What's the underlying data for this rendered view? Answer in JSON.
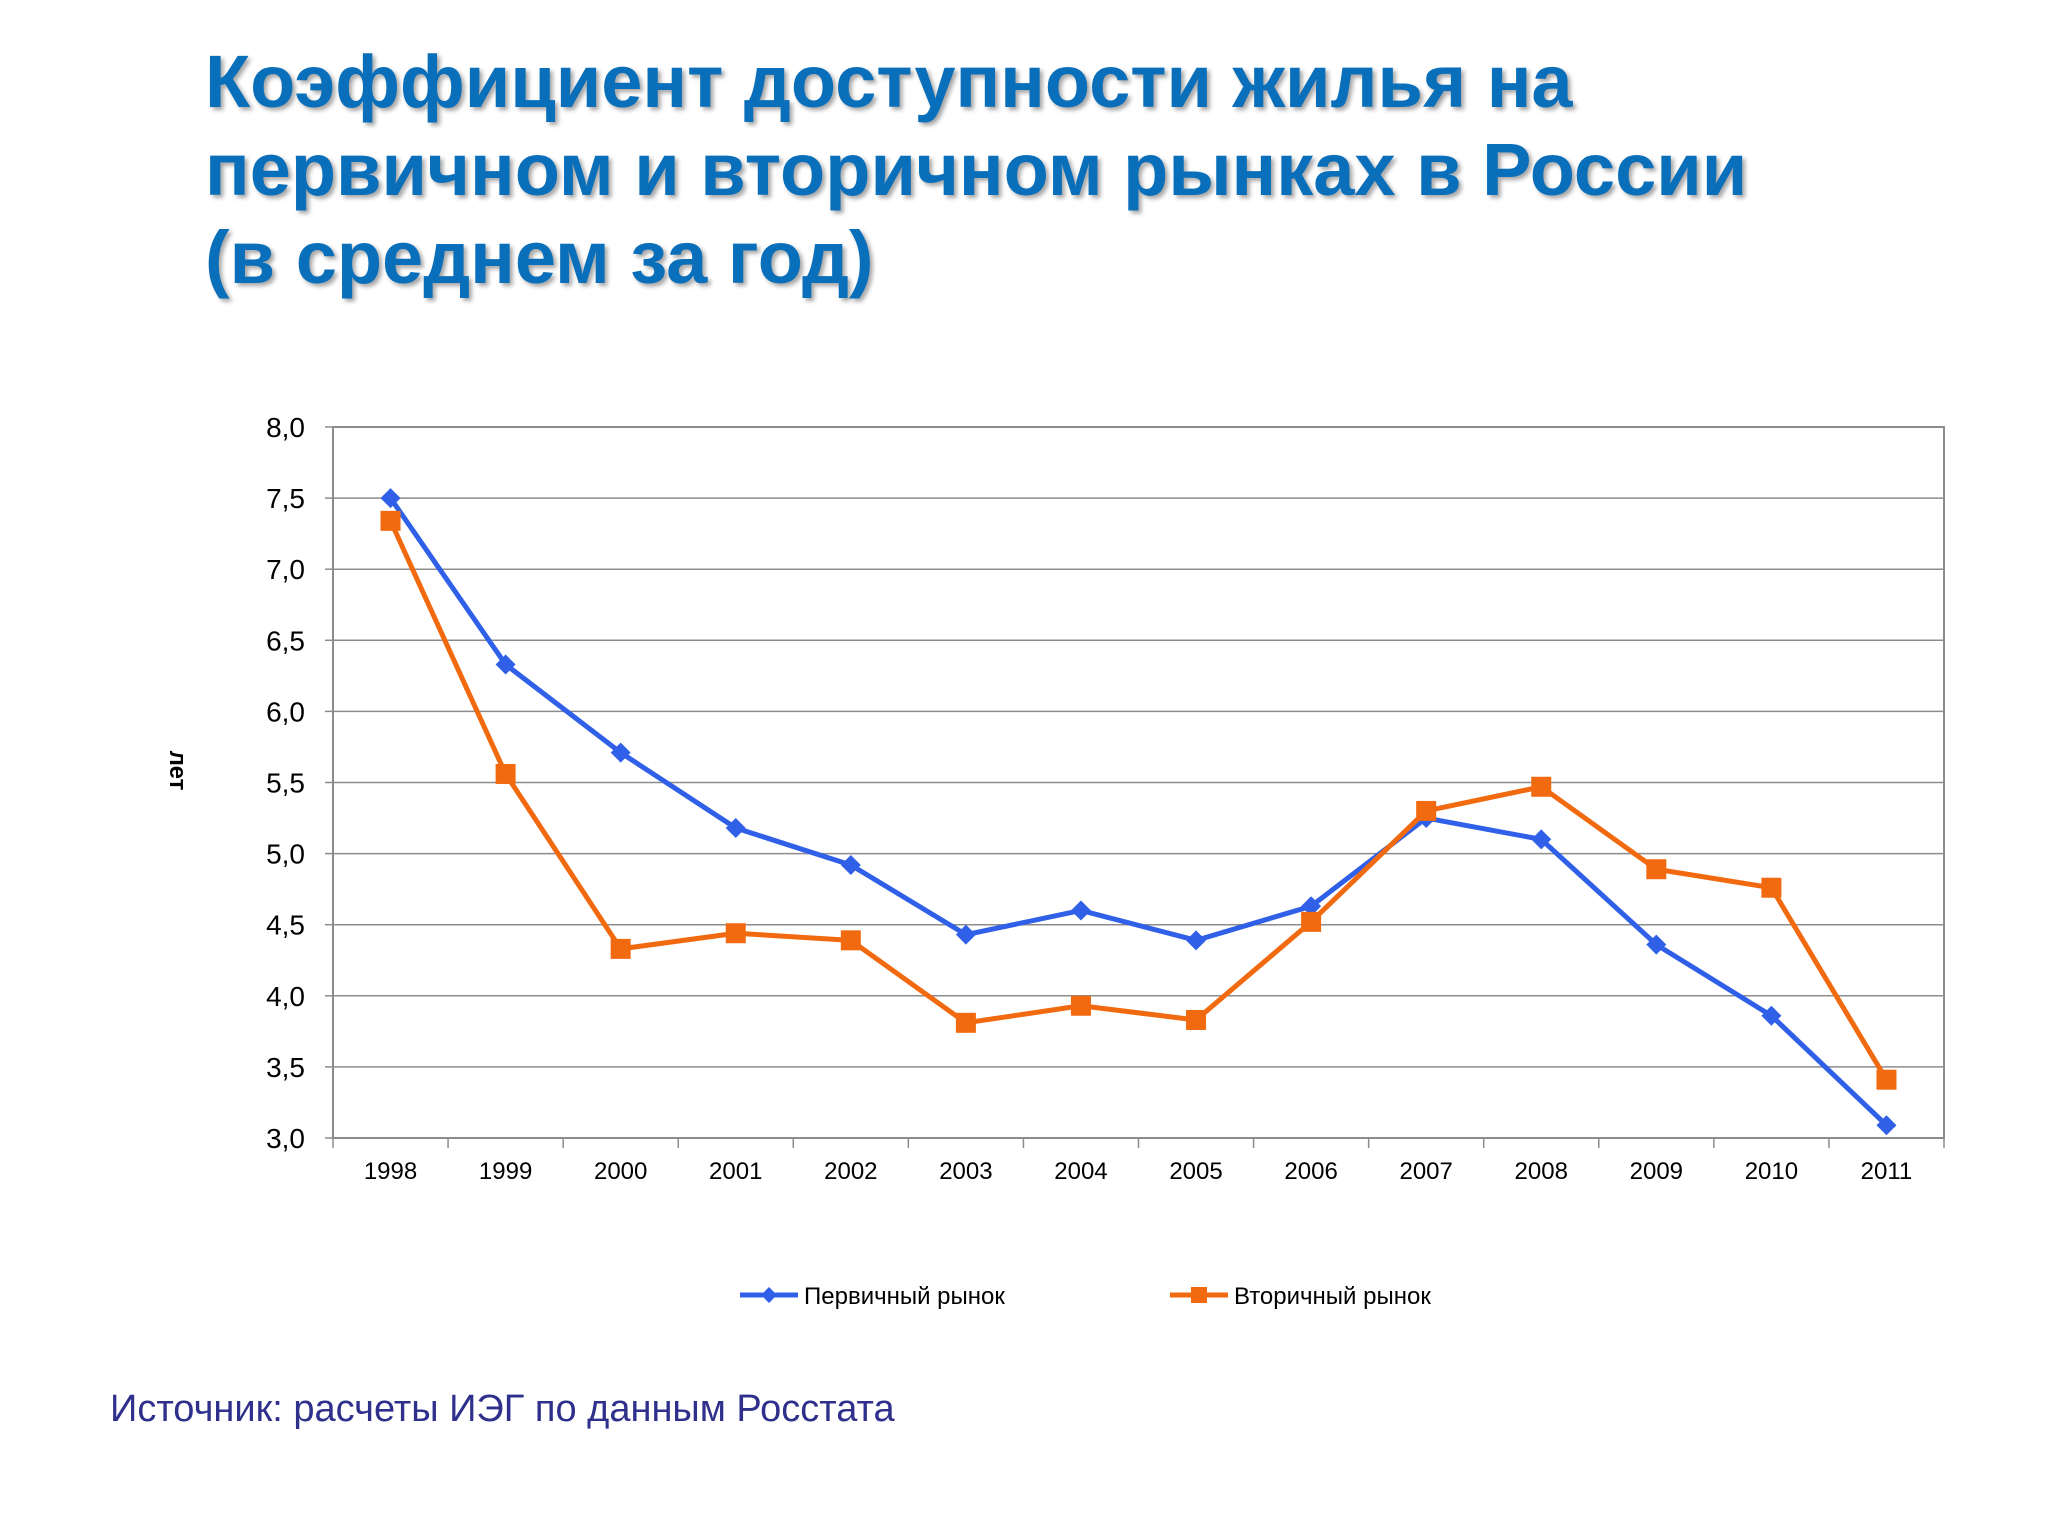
{
  "title_lines": [
    "Коэффициент доступности жилья на",
    "первичном и вторичном рынках в России",
    "(в среднем за год)"
  ],
  "source": "Источник: расчеты ИЭГ по данным Росстата",
  "colors": {
    "primary": "#3060e8",
    "secondary": "#f26a10",
    "title": "#0a6fba",
    "source": "#2f2f8c"
  },
  "chart_data": {
    "type": "line",
    "title": "Коэффициент доступности жилья на первичном и вторичном рынках в России (в среднем за год)",
    "xlabel": "",
    "ylabel": "лет",
    "categories": [
      "1998",
      "1999",
      "2000",
      "2001",
      "2002",
      "2003",
      "2004",
      "2005",
      "2006",
      "2007",
      "2008",
      "2009",
      "2010",
      "2011"
    ],
    "ylim": [
      3.0,
      8.0
    ],
    "yticks": [
      "3,0",
      "3,5",
      "4,0",
      "4,5",
      "5,0",
      "5,5",
      "6,0",
      "6,5",
      "7,0",
      "7,5",
      "8,0"
    ],
    "grid": true,
    "legend_position": "bottom",
    "series": [
      {
        "name": "Первичный рынок",
        "marker": "diamond",
        "color": "#3060e8",
        "values": [
          7.5,
          6.33,
          5.71,
          5.18,
          4.92,
          4.43,
          4.6,
          4.39,
          4.63,
          5.25,
          5.1,
          4.36,
          3.86,
          3.09
        ]
      },
      {
        "name": "Вторичный рынок",
        "marker": "square",
        "color": "#f26a10",
        "values": [
          7.34,
          5.56,
          4.33,
          4.44,
          4.39,
          3.81,
          3.93,
          3.83,
          4.52,
          5.3,
          5.47,
          4.89,
          4.76,
          3.41
        ]
      }
    ]
  }
}
